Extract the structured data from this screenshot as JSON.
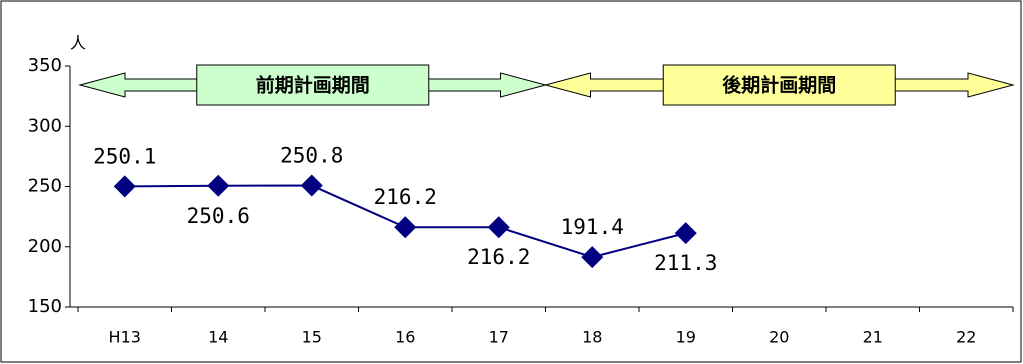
{
  "chart_data": {
    "type": "line",
    "y_label": "人",
    "categories": [
      "H13",
      "14",
      "15",
      "16",
      "17",
      "18",
      "19",
      "20",
      "21",
      "22"
    ],
    "series": [
      {
        "color": "#000080",
        "values": [
          250.1,
          250.6,
          250.8,
          216.2,
          216.2,
          191.4,
          211.3,
          null,
          null,
          null
        ]
      }
    ],
    "ylim": [
      150,
      350
    ],
    "yticks": [
      150,
      200,
      250,
      300,
      350
    ],
    "periods": [
      {
        "label": "前期計画期間",
        "color": "#ccffcc"
      },
      {
        "label": "後期計画期間",
        "color": "#ffff99"
      }
    ]
  }
}
